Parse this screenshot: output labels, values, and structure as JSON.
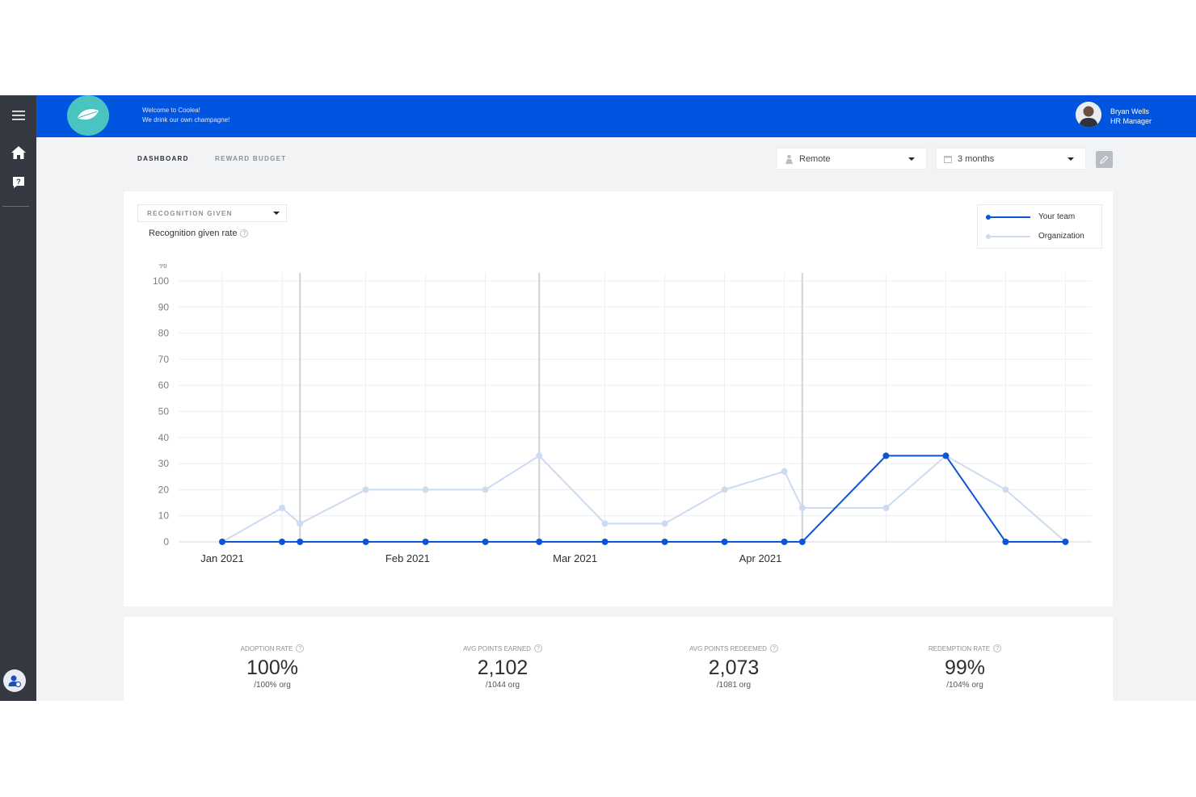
{
  "header": {
    "welcome_line1": "Welcome to Coolea!",
    "welcome_line2": "We drink our own champagne!",
    "user_name": "Bryan Wells",
    "user_role": "HR Manager"
  },
  "tabs": {
    "dashboard": "DASHBOARD",
    "reward_budget": "REWARD BUDGET"
  },
  "filters": {
    "location": "Remote",
    "period": "3 months"
  },
  "chart_panel": {
    "metric_select": "RECOGNITION GIVEN",
    "rate_label": "Recognition given rate",
    "help_icon": "?",
    "legend": [
      "Your team",
      "Organization"
    ]
  },
  "chart_data": {
    "type": "line",
    "ylabel": "%",
    "ylim": [
      0,
      100
    ],
    "yticks": [
      0,
      10,
      20,
      30,
      40,
      50,
      60,
      70,
      80,
      90,
      100
    ],
    "x_tick_labels": [
      "Jan 2021",
      "Feb 2021",
      "Mar 2021",
      "Apr 2021"
    ],
    "x_tick_days": [
      7,
      38,
      66,
      97
    ],
    "x_days": [
      7,
      17,
      20,
      31,
      41,
      51,
      60,
      71,
      81,
      91,
      101,
      104,
      118,
      128,
      138,
      148
    ],
    "highlight_days": [
      20,
      60,
      104
    ],
    "series": [
      {
        "name": "Your team",
        "color": "#0b56d8",
        "values": [
          0,
          0,
          0,
          0,
          0,
          0,
          0,
          0,
          0,
          0,
          0,
          0,
          33,
          33,
          0,
          0
        ]
      },
      {
        "name": "Organization",
        "color": "#ccdaf2",
        "values": [
          0,
          13,
          7,
          20,
          20,
          20,
          33,
          7,
          7,
          20,
          27,
          13,
          13,
          33,
          20,
          0
        ]
      }
    ]
  },
  "stats": [
    {
      "label": "ADOPTION RATE",
      "value": "100%",
      "sub": "/100% org"
    },
    {
      "label": "AVG POINTS EARNED",
      "value": "2,102",
      "sub": "/1044 org"
    },
    {
      "label": "AVG POINTS REDEEMED",
      "value": "2,073",
      "sub": "/1081 org"
    },
    {
      "label": "REDEMPTION RATE",
      "value": "99%",
      "sub": "/104% org"
    }
  ],
  "icons": {
    "menu": "menu-icon",
    "home": "home-icon",
    "help": "help-icon",
    "logo": "leaf-logo-icon",
    "location": "person-icon",
    "calendar": "calendar-icon",
    "edit": "pencil-icon",
    "profile": "user-settings-icon"
  }
}
